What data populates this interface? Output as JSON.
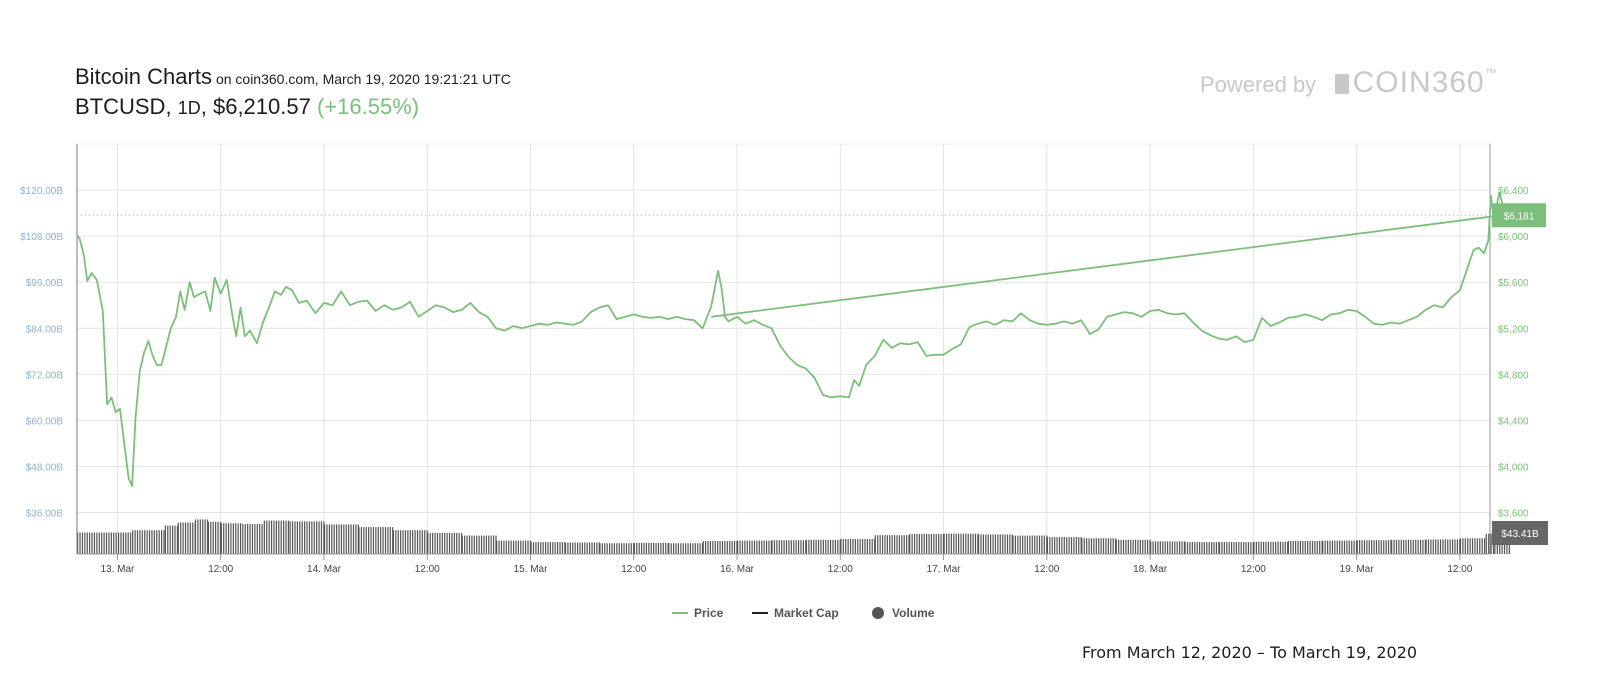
{
  "header": {
    "title": "Bitcoin Charts",
    "subtitle": "on coin360.com, March 19, 2020 19:21:21 UTC",
    "pair": "BTCUSD",
    "sep1": ",",
    "timeframe": "1D",
    "sep2": ",",
    "price": "$6,210.57",
    "change": "(+16.55%)"
  },
  "brand": {
    "powered_by": "Powered by",
    "logo_text": "COIN360",
    "trademark": "™"
  },
  "footer": {
    "date_range": "From March 12, 2020 – To March 19, 2020"
  },
  "colors": {
    "price": "#7cbf7c",
    "market_cap": "#222222",
    "volume": "#555555",
    "grid": "#e4e4e4",
    "left_axis": "#8fb3cf",
    "right_axis": "#7cbf7c",
    "volume_badge": "#666666"
  },
  "chart_data": {
    "type": "line",
    "x_axis": {
      "ticks": [
        {
          "label": "13. Mar",
          "t": 12
        },
        {
          "label": "12:00",
          "t": 24
        },
        {
          "label": "14. Mar",
          "t": 36
        },
        {
          "label": "12:00",
          "t": 48
        },
        {
          "label": "15. Mar",
          "t": 60
        },
        {
          "label": "12:00",
          "t": 72
        },
        {
          "label": "16. Mar",
          "t": 84
        },
        {
          "label": "12:00",
          "t": 96
        },
        {
          "label": "17. Mar",
          "t": 108
        },
        {
          "label": "12:00",
          "t": 120
        },
        {
          "label": "18. Mar",
          "t": 132
        },
        {
          "label": "12:00",
          "t": 144
        },
        {
          "label": "19. Mar",
          "t": 156
        },
        {
          "label": "12:00",
          "t": 168
        }
      ],
      "range": [
        7.3,
        171.5
      ]
    },
    "y_left": {
      "ticks": [
        "$36.00B",
        "$48.00B",
        "$60.00B",
        "$72.00B",
        "$84.00B",
        "$96.00B",
        "$108.00B",
        "$120.00B"
      ],
      "tick_values": [
        36,
        48,
        60,
        72,
        84,
        96,
        108,
        120
      ],
      "range": [
        25.2,
        132
      ]
    },
    "y_right": {
      "ticks": [
        "$3,600",
        "$4,000",
        "$4,400",
        "$4,800",
        "$5,200",
        "$5,600",
        "$6,000",
        "$6,400"
      ],
      "tick_values": [
        3600,
        4000,
        4400,
        4800,
        5200,
        5600,
        6000,
        6400
      ],
      "range": [
        3240,
        6800
      ]
    },
    "series": [
      {
        "name": "Price",
        "axis": "right",
        "points": [
          [
            7.3,
            6010
          ],
          [
            7.6,
            5980
          ],
          [
            8.1,
            5830
          ],
          [
            8.5,
            5610
          ],
          [
            9.0,
            5680
          ],
          [
            9.6,
            5620
          ],
          [
            10.3,
            5350
          ],
          [
            10.8,
            4540
          ],
          [
            11.3,
            4600
          ],
          [
            11.8,
            4470
          ],
          [
            12.3,
            4500
          ],
          [
            12.7,
            4250
          ],
          [
            13.3,
            3900
          ],
          [
            13.7,
            3830
          ],
          [
            14.1,
            4420
          ],
          [
            14.6,
            4830
          ],
          [
            15.1,
            4990
          ],
          [
            15.6,
            5090
          ],
          [
            16.1,
            4960
          ],
          [
            16.6,
            4880
          ],
          [
            17.1,
            4880
          ],
          [
            17.6,
            5020
          ],
          [
            18.2,
            5200
          ],
          [
            18.8,
            5300
          ],
          [
            19.3,
            5520
          ],
          [
            19.8,
            5360
          ],
          [
            20.4,
            5600
          ],
          [
            20.9,
            5470
          ],
          [
            21.6,
            5500
          ],
          [
            22.2,
            5520
          ],
          [
            22.8,
            5350
          ],
          [
            23.3,
            5640
          ],
          [
            24.0,
            5500
          ],
          [
            24.7,
            5620
          ],
          [
            25.4,
            5290
          ],
          [
            25.8,
            5130
          ],
          [
            26.3,
            5380
          ],
          [
            26.8,
            5130
          ],
          [
            27.4,
            5180
          ],
          [
            28.2,
            5070
          ],
          [
            28.9,
            5250
          ],
          [
            29.6,
            5380
          ],
          [
            30.3,
            5520
          ],
          [
            31.0,
            5490
          ],
          [
            31.6,
            5560
          ],
          [
            32.3,
            5530
          ],
          [
            33.1,
            5420
          ],
          [
            34.0,
            5440
          ],
          [
            35.0,
            5330
          ],
          [
            36.0,
            5420
          ],
          [
            37.0,
            5400
          ],
          [
            38.0,
            5520
          ],
          [
            39.0,
            5400
          ],
          [
            40.0,
            5430
          ],
          [
            41.0,
            5440
          ],
          [
            42.0,
            5350
          ],
          [
            43.0,
            5400
          ],
          [
            44.0,
            5360
          ],
          [
            45.0,
            5380
          ],
          [
            46.0,
            5430
          ],
          [
            47.0,
            5300
          ],
          [
            48.0,
            5350
          ],
          [
            49.0,
            5400
          ],
          [
            50.0,
            5380
          ],
          [
            51.0,
            5340
          ],
          [
            52.0,
            5360
          ],
          [
            53.0,
            5420
          ],
          [
            54.0,
            5340
          ],
          [
            55.0,
            5300
          ],
          [
            56.0,
            5200
          ],
          [
            57.0,
            5180
          ],
          [
            58.0,
            5220
          ],
          [
            59.0,
            5200
          ],
          [
            60.0,
            5220
          ],
          [
            61.0,
            5240
          ],
          [
            62.0,
            5230
          ],
          [
            63.0,
            5250
          ],
          [
            64.0,
            5240
          ],
          [
            65.0,
            5230
          ],
          [
            66.0,
            5260
          ],
          [
            67.0,
            5340
          ],
          [
            68.0,
            5380
          ],
          [
            69.0,
            5400
          ],
          [
            70.0,
            5280
          ],
          [
            71.0,
            5300
          ],
          [
            72.0,
            5320
          ],
          [
            73.0,
            5300
          ],
          [
            74.0,
            5290
          ],
          [
            75.0,
            5300
          ],
          [
            76.0,
            5280
          ],
          [
            77.0,
            5300
          ],
          [
            78.0,
            5280
          ],
          [
            79.0,
            5270
          ],
          [
            80.0,
            5200
          ],
          [
            81.0,
            5390
          ],
          [
            81.8,
            5700
          ],
          [
            82.2,
            5550
          ],
          [
            82.6,
            5300
          ],
          [
            83.0,
            5260
          ],
          [
            84.0,
            5300
          ],
          [
            85.0,
            5240
          ],
          [
            86.0,
            5270
          ],
          [
            87.0,
            5230
          ],
          [
            88.0,
            5200
          ],
          [
            89.0,
            5050
          ],
          [
            90.0,
            4950
          ],
          [
            91.0,
            4880
          ],
          [
            92.0,
            4850
          ],
          [
            93.0,
            4770
          ],
          [
            94.0,
            4620
          ],
          [
            95.0,
            4600
          ],
          [
            96.0,
            4610
          ],
          [
            97.0,
            4600
          ],
          [
            97.6,
            4750
          ],
          [
            98.2,
            4700
          ],
          [
            99.0,
            4880
          ],
          [
            100.0,
            4960
          ],
          [
            101.0,
            5100
          ],
          [
            102.0,
            5030
          ],
          [
            103.0,
            5070
          ],
          [
            104.0,
            5060
          ],
          [
            105.0,
            5080
          ],
          [
            106.0,
            4960
          ],
          [
            107.0,
            4970
          ],
          [
            108.0,
            4970
          ],
          [
            109.0,
            5020
          ],
          [
            110.0,
            5060
          ],
          [
            111.0,
            5210
          ],
          [
            112.0,
            5240
          ],
          [
            113.0,
            5260
          ],
          [
            114.0,
            5230
          ],
          [
            115.0,
            5270
          ],
          [
            116.0,
            5260
          ],
          [
            117.0,
            5330
          ],
          [
            118.0,
            5270
          ],
          [
            119.0,
            5240
          ],
          [
            120.0,
            5230
          ],
          [
            121.0,
            5240
          ],
          [
            122.0,
            5260
          ],
          [
            123.0,
            5240
          ],
          [
            124.0,
            5270
          ],
          [
            125.0,
            5150
          ],
          [
            126.0,
            5190
          ],
          [
            127.0,
            5300
          ],
          [
            128.0,
            5320
          ],
          [
            129.0,
            5340
          ],
          [
            130.0,
            5330
          ],
          [
            131.0,
            5300
          ],
          [
            132.0,
            5350
          ],
          [
            133.0,
            5360
          ],
          [
            134.0,
            5330
          ],
          [
            135.0,
            5320
          ],
          [
            136.0,
            5330
          ],
          [
            137.0,
            5250
          ],
          [
            138.0,
            5180
          ],
          [
            139.0,
            5140
          ],
          [
            140.0,
            5110
          ],
          [
            141.0,
            5100
          ],
          [
            142.0,
            5130
          ],
          [
            143.0,
            5080
          ],
          [
            144.0,
            5100
          ],
          [
            145.0,
            5290
          ],
          [
            146.0,
            5220
          ],
          [
            147.0,
            5250
          ],
          [
            148.0,
            5290
          ],
          [
            149.0,
            5300
          ],
          [
            150.0,
            5320
          ],
          [
            151.0,
            5300
          ],
          [
            152.0,
            5270
          ],
          [
            153.0,
            5320
          ],
          [
            154.0,
            5330
          ],
          [
            155.0,
            5360
          ],
          [
            156.0,
            5350
          ],
          [
            157.0,
            5300
          ],
          [
            158.0,
            5240
          ],
          [
            159.0,
            5230
          ],
          [
            160.0,
            5250
          ],
          [
            161.0,
            5240
          ],
          [
            162.0,
            5270
          ],
          [
            163.0,
            5300
          ],
          [
            164.0,
            5360
          ],
          [
            165.0,
            5400
          ],
          [
            166.0,
            5380
          ],
          [
            167.0,
            5470
          ],
          [
            168.0,
            5530
          ],
          [
            169.0,
            5750
          ],
          [
            169.6,
            5880
          ],
          [
            170.2,
            5900
          ],
          [
            170.8,
            5850
          ],
          [
            171.3,
            5960
          ],
          [
            171.6,
            6350
          ],
          [
            171.9,
            6160
          ],
          [
            172.2,
            6240
          ],
          [
            172.6,
            6380
          ],
          [
            173.0,
            6260
          ],
          [
            173.4,
            6210
          ],
          [
            173.7,
            6181
          ]
        ]
      },
      {
        "name": "Price",
        "axis": "right",
        "points": [
          [
            81.0,
            5300
          ],
          [
            173.7,
            6190
          ]
        ]
      }
    ],
    "volume_bars": [
      {
        "from": 7.3,
        "to": 13.7,
        "value": 30.8
      },
      {
        "from": 13.7,
        "to": 17.5,
        "value": 31.4
      },
      {
        "from": 17.5,
        "to": 19.0,
        "value": 32.6
      },
      {
        "from": 19.0,
        "to": 21.0,
        "value": 33.4
      },
      {
        "from": 21.0,
        "to": 22.5,
        "value": 34.2
      },
      {
        "from": 22.5,
        "to": 24.0,
        "value": 33.6
      },
      {
        "from": 24.0,
        "to": 26.5,
        "value": 33.2
      },
      {
        "from": 26.5,
        "to": 29.0,
        "value": 33.0
      },
      {
        "from": 29.0,
        "to": 32.0,
        "value": 33.9
      },
      {
        "from": 32.0,
        "to": 36.0,
        "value": 33.7
      },
      {
        "from": 36.0,
        "to": 40.0,
        "value": 32.9
      },
      {
        "from": 40.0,
        "to": 44.0,
        "value": 32.2
      },
      {
        "from": 44.0,
        "to": 48.0,
        "value": 31.4
      },
      {
        "from": 48.0,
        "to": 52.0,
        "value": 30.7
      },
      {
        "from": 52.0,
        "to": 56.0,
        "value": 30.0
      },
      {
        "from": 56.0,
        "to": 60.0,
        "value": 28.7
      },
      {
        "from": 60.0,
        "to": 64.0,
        "value": 28.3
      },
      {
        "from": 64.0,
        "to": 68.0,
        "value": 28.2
      },
      {
        "from": 68.0,
        "to": 72.0,
        "value": 28.0
      },
      {
        "from": 72.0,
        "to": 76.0,
        "value": 28.1
      },
      {
        "from": 76.0,
        "to": 80.0,
        "value": 28.0
      },
      {
        "from": 80.0,
        "to": 84.0,
        "value": 28.6
      },
      {
        "from": 84.0,
        "to": 88.0,
        "value": 28.7
      },
      {
        "from": 88.0,
        "to": 92.0,
        "value": 28.8
      },
      {
        "from": 92.0,
        "to": 96.0,
        "value": 28.9
      },
      {
        "from": 96.0,
        "to": 100.0,
        "value": 29.1
      },
      {
        "from": 100.0,
        "to": 104.0,
        "value": 30.1
      },
      {
        "from": 104.0,
        "to": 108.0,
        "value": 30.4
      },
      {
        "from": 108.0,
        "to": 112.0,
        "value": 30.5
      },
      {
        "from": 112.0,
        "to": 116.0,
        "value": 30.3
      },
      {
        "from": 116.0,
        "to": 120.0,
        "value": 30.0
      },
      {
        "from": 120.0,
        "to": 124.0,
        "value": 29.6
      },
      {
        "from": 124.0,
        "to": 128.0,
        "value": 29.3
      },
      {
        "from": 128.0,
        "to": 132.0,
        "value": 28.9
      },
      {
        "from": 132.0,
        "to": 136.0,
        "value": 28.5
      },
      {
        "from": 136.0,
        "to": 140.0,
        "value": 28.3
      },
      {
        "from": 140.0,
        "to": 144.0,
        "value": 28.3
      },
      {
        "from": 144.0,
        "to": 148.0,
        "value": 28.4
      },
      {
        "from": 148.0,
        "to": 152.0,
        "value": 28.6
      },
      {
        "from": 152.0,
        "to": 156.0,
        "value": 28.7
      },
      {
        "from": 156.0,
        "to": 160.0,
        "value": 28.8
      },
      {
        "from": 160.0,
        "to": 164.0,
        "value": 28.9
      },
      {
        "from": 164.0,
        "to": 168.0,
        "value": 29.0
      },
      {
        "from": 168.0,
        "to": 171.0,
        "value": 29.3
      },
      {
        "from": 171.0,
        "to": 172.0,
        "value": 30.5
      },
      {
        "from": 172.0,
        "to": 173.8,
        "value": 31.0
      }
    ],
    "last_price_badge": "$6,181",
    "last_price_value": 6181,
    "volume_badge": "$43.41B",
    "grid": true,
    "legend": {
      "placement": "bottom-center",
      "items": [
        {
          "label": "Price",
          "marker": "line",
          "color": "#7cbf7c"
        },
        {
          "label": "Market Cap",
          "marker": "line",
          "color": "#222222"
        },
        {
          "label": "Volume",
          "marker": "dot",
          "color": "#555555"
        }
      ]
    }
  }
}
